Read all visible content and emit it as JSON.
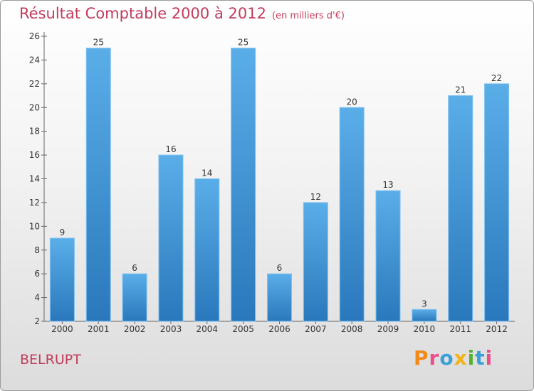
{
  "chart_data": {
    "type": "bar",
    "title": "Résultat Comptable 2000 à 2012",
    "subtitle": "(en milliers d'€)",
    "categories": [
      "2000",
      "2001",
      "2002",
      "2003",
      "2004",
      "2005",
      "2006",
      "2007",
      "2008",
      "2009",
      "2010",
      "2011",
      "2012"
    ],
    "values": [
      9,
      25,
      6,
      16,
      14,
      25,
      6,
      12,
      20,
      13,
      3,
      21,
      22
    ],
    "ylim": [
      2,
      26
    ],
    "yticks": [
      2,
      4,
      6,
      8,
      10,
      12,
      14,
      16,
      18,
      20,
      22,
      24,
      26
    ],
    "xlabel": "",
    "ylabel": "",
    "grid": false,
    "bar_color": "#3a8fd4"
  },
  "footer": {
    "commune": "BELRUPT",
    "logo_letters": [
      "P",
      "r",
      "o",
      "x",
      "i",
      "t",
      "i"
    ]
  }
}
